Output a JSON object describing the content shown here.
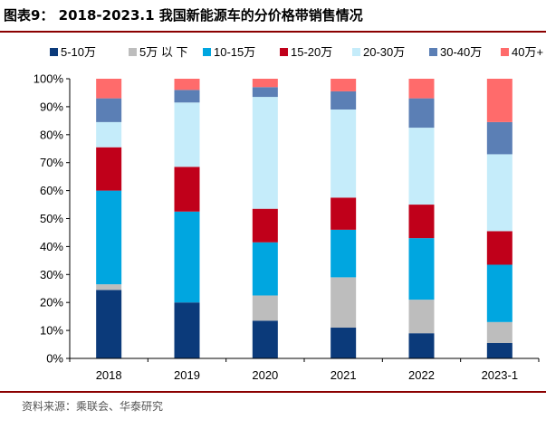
{
  "figure_title": "图表9： 2018-2023.1 我国新能源车的分价格带销售情况",
  "source": "资料来源：乘联会、华泰研究",
  "chart_data": {
    "type": "bar",
    "stacked": true,
    "categories": [
      "2018",
      "2019",
      "2020",
      "2021",
      "2022",
      "2023-1"
    ],
    "ylim": [
      0,
      100
    ],
    "yticks": [
      "0%",
      "10%",
      "20%",
      "30%",
      "40%",
      "50%",
      "60%",
      "70%",
      "80%",
      "90%",
      "100%"
    ],
    "legend_position": "top",
    "grid": false,
    "series": [
      {
        "name": "5-10万",
        "color": "#0b3a7a",
        "values": [
          24.5,
          20.0,
          13.5,
          11.0,
          9.0,
          5.5
        ]
      },
      {
        "name": "5万 以 下",
        "color": "#bdbdbd",
        "values": [
          2.0,
          0.0,
          9.0,
          18.0,
          12.0,
          7.5
        ]
      },
      {
        "name": "10-15万",
        "color": "#00a6e0",
        "values": [
          33.5,
          32.5,
          19.0,
          17.0,
          22.0,
          20.5
        ]
      },
      {
        "name": "15-20万",
        "color": "#c0001a",
        "values": [
          15.5,
          16.0,
          12.0,
          11.5,
          12.0,
          12.0
        ]
      },
      {
        "name": "20-30万",
        "color": "#c5ecfa",
        "values": [
          9.0,
          23.0,
          40.0,
          31.5,
          27.5,
          27.5
        ]
      },
      {
        "name": "30-40万",
        "color": "#5b7fb5",
        "values": [
          8.5,
          4.5,
          3.5,
          6.5,
          10.5,
          11.5
        ]
      },
      {
        "name": "40万+",
        "color": "#ff6b6b",
        "values": [
          7.0,
          4.0,
          3.0,
          4.5,
          7.0,
          15.5
        ]
      }
    ]
  }
}
